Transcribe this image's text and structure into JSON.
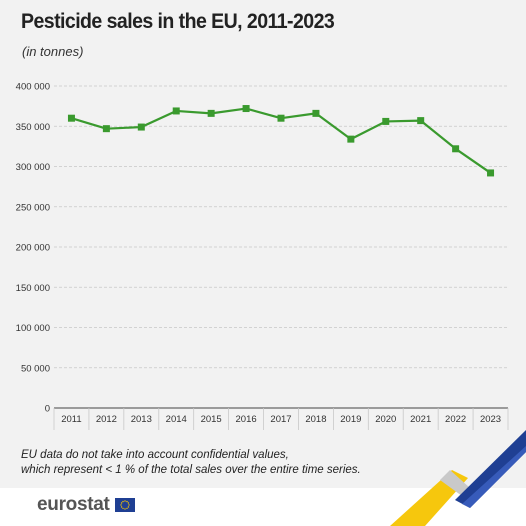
{
  "header": {
    "title": "Pesticide sales in the EU, 2011-2023",
    "subtitle": "(in tonnes)"
  },
  "note": {
    "line1": "EU data do not take into account confidential values,",
    "line2": "which represent < 1 % of the total sales over the entire time series."
  },
  "footer": {
    "logo_text": "eurostat",
    "flag_icon": "eu-flag-icon"
  },
  "colors": {
    "series": "#3a9a2e",
    "grid": "#c8c8c8",
    "background": "#f2f2f2",
    "eu_blue": "#1f3f93",
    "eu_yellow": "#f5c400"
  },
  "chart_data": {
    "type": "line",
    "title": "Pesticide sales in the EU, 2011-2023",
    "subtitle": "(in tonnes)",
    "x": [
      "2011",
      "2012",
      "2013",
      "2014",
      "2015",
      "2016",
      "2017",
      "2018",
      "2019",
      "2020",
      "2021",
      "2022",
      "2023"
    ],
    "series": [
      {
        "values": [
          360000,
          347000,
          349000,
          369000,
          366000,
          372000,
          360000,
          366000,
          334000,
          356000,
          357000,
          322000,
          292000
        ]
      }
    ],
    "ylim": [
      0,
      400000
    ],
    "yticks": [
      0,
      50000,
      100000,
      150000,
      200000,
      250000,
      300000,
      350000,
      400000
    ],
    "ytick_labels": [
      "0",
      "50 000",
      "100 000",
      "150 000",
      "200 000",
      "250 000",
      "300 000",
      "350 000",
      "400 000"
    ],
    "grid": "horizontal dashed",
    "marker": "square"
  }
}
